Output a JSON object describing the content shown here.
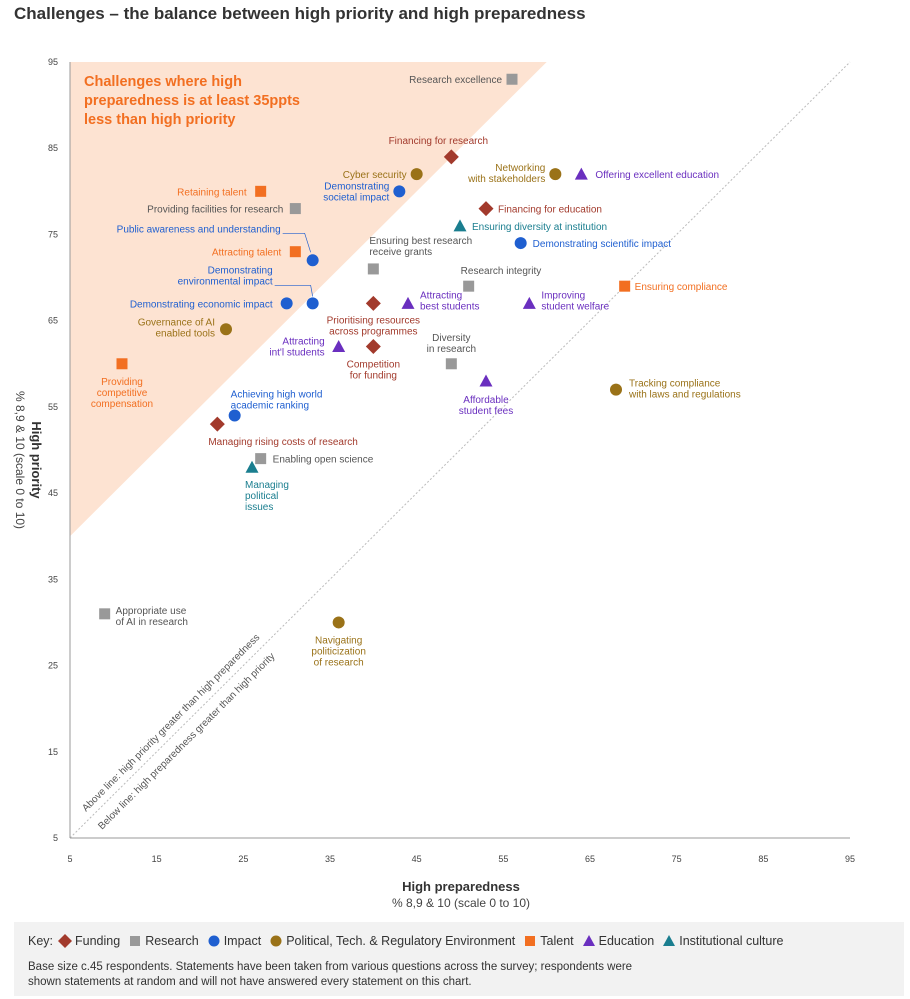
{
  "title": "Challenges – the balance between high priority and high preparedness",
  "chart_data": {
    "type": "scatter",
    "title": "Challenges – the balance between high priority and high preparedness",
    "xlabel": "High preparedness",
    "xlabel_sub": "% 8,9 & 10 (scale 0 to 10)",
    "ylabel": "High priority",
    "ylabel_sub": "% 8,9 & 10 (scale 0 to 10)",
    "xlim": [
      5,
      95
    ],
    "ylim": [
      5,
      95
    ],
    "xticks": [
      5,
      15,
      25,
      35,
      45,
      55,
      65,
      75,
      85,
      95
    ],
    "yticks": [
      5,
      15,
      25,
      35,
      45,
      55,
      65,
      75,
      85,
      95
    ],
    "grid": false,
    "shaded_region": {
      "label": "Challenges where high preparedness is at least 35ppts less than high priority",
      "gap": 35
    },
    "diagonal_labels": {
      "above": "Above line: high priority greater than high preparedness",
      "below": "Below line: high preparedness greater than high priority"
    },
    "categories": {
      "Funding": {
        "color": "#a23a2c",
        "marker": "diamond"
      },
      "Research": {
        "color": "#999999",
        "marker": "square"
      },
      "Impact": {
        "color": "#1f5fd0",
        "marker": "circle"
      },
      "Political, Tech. & Regulatory Environment": {
        "color": "#9a7218",
        "marker": "circle"
      },
      "Talent": {
        "color": "#f26f21",
        "marker": "square"
      },
      "Education": {
        "color": "#6a2fbf",
        "marker": "triangle"
      },
      "Institutional culture": {
        "color": "#1a7e8f",
        "marker": "triangle"
      }
    },
    "points": [
      {
        "label": "Research excellence",
        "x": 56,
        "y": 93,
        "category": "Research"
      },
      {
        "label": "Financing for research",
        "x": 49,
        "y": 84,
        "category": "Funding"
      },
      {
        "label": "Cyber security",
        "x": 45,
        "y": 82,
        "category": "Political, Tech. & Regulatory Environment"
      },
      {
        "label": "Demonstrating societal impact",
        "x": 43,
        "y": 80,
        "category": "Impact"
      },
      {
        "label": "Networking with stakeholders",
        "x": 61,
        "y": 82,
        "category": "Political, Tech. & Regulatory Environment"
      },
      {
        "label": "Offering excellent education",
        "x": 64,
        "y": 82,
        "category": "Education"
      },
      {
        "label": "Retaining talent",
        "x": 27,
        "y": 80,
        "category": "Talent"
      },
      {
        "label": "Providing facilities for research",
        "x": 31,
        "y": 78,
        "category": "Research"
      },
      {
        "label": "Financing for education",
        "x": 53,
        "y": 78,
        "category": "Funding"
      },
      {
        "label": "Ensuring diversity at institution",
        "x": 50,
        "y": 76,
        "category": "Institutional culture"
      },
      {
        "label": "Public awareness and understanding",
        "x": 33,
        "y": 72,
        "category": "Impact"
      },
      {
        "label": "Demonstrating scientific impact",
        "x": 57,
        "y": 74,
        "category": "Impact"
      },
      {
        "label": "Attracting talent",
        "x": 31,
        "y": 73,
        "category": "Talent"
      },
      {
        "label": "Ensuring best research receive grants",
        "x": 40,
        "y": 71,
        "category": "Research"
      },
      {
        "label": "Demonstrating environmental impact",
        "x": 33,
        "y": 67,
        "category": "Impact"
      },
      {
        "label": "Research integrity",
        "x": 51,
        "y": 69,
        "category": "Research"
      },
      {
        "label": "Ensuring compliance",
        "x": 69,
        "y": 69,
        "category": "Talent"
      },
      {
        "label": "Demonstrating economic impact",
        "x": 30,
        "y": 67,
        "category": "Impact"
      },
      {
        "label": "Prioritising resources across programmes",
        "x": 40,
        "y": 67,
        "category": "Funding"
      },
      {
        "label": "Attracting best students",
        "x": 44,
        "y": 67,
        "category": "Education"
      },
      {
        "label": "Improving student welfare",
        "x": 58,
        "y": 67,
        "category": "Education"
      },
      {
        "label": "Governance of AI enabled tools",
        "x": 23,
        "y": 64,
        "category": "Political, Tech. & Regulatory Environment"
      },
      {
        "label": "Attracting int'l students",
        "x": 36,
        "y": 62,
        "category": "Education"
      },
      {
        "label": "Competition for funding",
        "x": 40,
        "y": 62,
        "category": "Funding"
      },
      {
        "label": "Diversity in research",
        "x": 49,
        "y": 60,
        "category": "Research"
      },
      {
        "label": "Providing competitive compensation",
        "x": 11,
        "y": 60,
        "category": "Talent"
      },
      {
        "label": "Affordable student fees",
        "x": 53,
        "y": 58,
        "category": "Education"
      },
      {
        "label": "Tracking compliance with laws and regulations",
        "x": 68,
        "y": 57,
        "category": "Political, Tech. & Regulatory Environment"
      },
      {
        "label": "Achieving high world academic ranking",
        "x": 24,
        "y": 54,
        "category": "Impact"
      },
      {
        "label": "Managing rising costs of research",
        "x": 22,
        "y": 53,
        "category": "Funding"
      },
      {
        "label": "Enabling open science",
        "x": 27,
        "y": 49,
        "category": "Research"
      },
      {
        "label": "Managing political issues",
        "x": 26,
        "y": 48,
        "category": "Institutional culture"
      },
      {
        "label": "Appropriate use of AI in research",
        "x": 9,
        "y": 31,
        "category": "Research"
      },
      {
        "label": "Navigating politicization of research",
        "x": 36,
        "y": 30,
        "category": "Political, Tech. & Regulatory Environment"
      }
    ]
  },
  "key": {
    "prefix": "Key:",
    "items": [
      {
        "label": "Funding",
        "marker": "diamond",
        "color": "#a23a2c"
      },
      {
        "label": "Research",
        "marker": "square",
        "color": "#999999"
      },
      {
        "label": "Impact",
        "marker": "circle",
        "color": "#1f5fd0"
      },
      {
        "label": "Political, Tech. & Regulatory Environment",
        "marker": "circle",
        "color": "#9a7218"
      },
      {
        "label": "Talent",
        "marker": "square",
        "color": "#f26f21"
      },
      {
        "label": "Education",
        "marker": "triangle",
        "color": "#6a2fbf"
      },
      {
        "label": "Institutional culture",
        "marker": "triangle",
        "color": "#1a7e8f"
      }
    ]
  },
  "note": "Base size c.45 respondents. Statements have been taken from various questions across the survey; respondents were shown statements at random and will not have answered every statement on this chart."
}
